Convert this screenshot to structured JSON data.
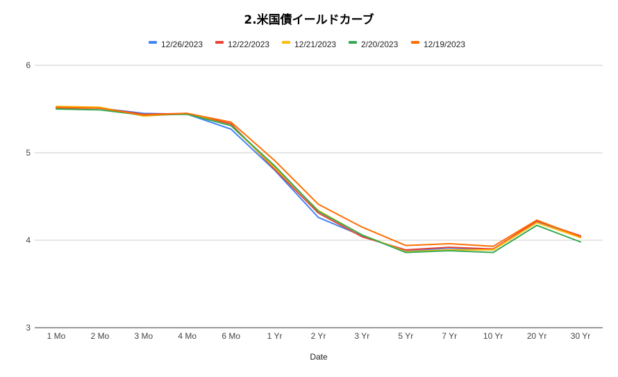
{
  "chart_data": {
    "type": "line",
    "title": "2.米国債イールドカーブ",
    "xlabel": "Date",
    "ylabel": "",
    "ylim": [
      3,
      6
    ],
    "yticks": [
      3,
      4,
      5,
      6
    ],
    "categories": [
      "1 Mo",
      "2 Mo",
      "3 Mo",
      "4 Mo",
      "6 Mo",
      "1 Yr",
      "2 Yr",
      "3 Yr",
      "5 Yr",
      "7 Yr",
      "10 Yr",
      "20 Yr",
      "30 Yr"
    ],
    "legend_position": "top",
    "grid": true,
    "series": [
      {
        "name": "12/26/2023",
        "color": "#4285f4",
        "values": [
          5.52,
          5.51,
          5.45,
          5.44,
          5.27,
          4.8,
          4.26,
          4.05,
          3.88,
          3.91,
          3.89,
          4.21,
          4.04
        ]
      },
      {
        "name": "12/22/2023",
        "color": "#ea4335",
        "values": [
          5.51,
          5.51,
          5.44,
          5.45,
          5.33,
          4.81,
          4.31,
          4.04,
          3.89,
          3.92,
          3.9,
          4.22,
          4.05
        ]
      },
      {
        "name": "12/21/2023",
        "color": "#fbbc04",
        "values": [
          5.53,
          5.52,
          5.42,
          5.45,
          5.31,
          4.83,
          4.34,
          4.06,
          3.87,
          3.89,
          3.89,
          4.2,
          4.03
        ]
      },
      {
        "name": "2/20/2023",
        "color": "#34a853",
        "values": [
          5.5,
          5.49,
          5.43,
          5.44,
          5.31,
          4.85,
          4.33,
          4.06,
          3.86,
          3.88,
          3.86,
          4.17,
          3.98
        ]
      },
      {
        "name": "12/19/2023",
        "color": "#ff6d01",
        "values": [
          5.52,
          5.51,
          5.43,
          5.45,
          5.35,
          4.91,
          4.41,
          4.15,
          3.94,
          3.96,
          3.93,
          4.23,
          4.04
        ]
      }
    ]
  }
}
